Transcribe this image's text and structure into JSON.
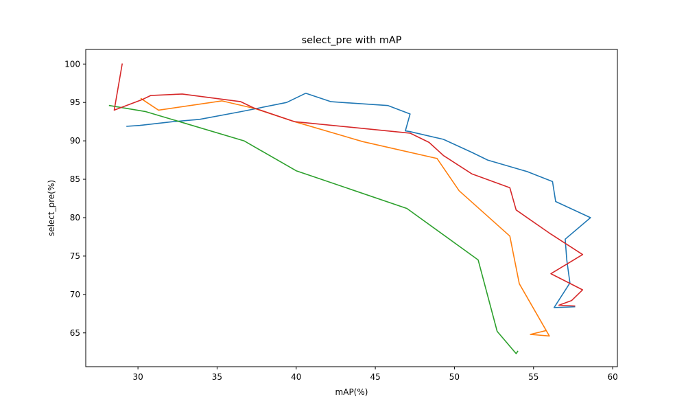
{
  "chart_data": {
    "type": "line",
    "title": "select_pre with mAP",
    "xlabel": "mAP(%)",
    "ylabel": "select_pre(%)",
    "xlim": [
      26.7,
      60.3
    ],
    "ylim": [
      60.6,
      101.9
    ],
    "xticks": [
      30,
      35,
      40,
      45,
      50,
      55,
      60
    ],
    "yticks": [
      65,
      70,
      75,
      80,
      85,
      90,
      95,
      100
    ],
    "grid": false,
    "series": [
      {
        "color": "#1f77b4",
        "points": [
          [
            29.3,
            91.9
          ],
          [
            30.1,
            92.0
          ],
          [
            32.2,
            92.5
          ],
          [
            33.9,
            92.8
          ],
          [
            36.5,
            93.8
          ],
          [
            39.4,
            95.0
          ],
          [
            40.6,
            96.2
          ],
          [
            42.2,
            95.1
          ],
          [
            45.8,
            94.6
          ],
          [
            47.2,
            93.5
          ],
          [
            46.9,
            91.3
          ],
          [
            47.2,
            91.2
          ],
          [
            49.3,
            90.2
          ],
          [
            51.1,
            88.5
          ],
          [
            52.1,
            87.5
          ],
          [
            54.6,
            86.0
          ],
          [
            56.2,
            84.7
          ],
          [
            56.4,
            82.1
          ],
          [
            58.6,
            80.0
          ],
          [
            57.0,
            77.2
          ],
          [
            57.1,
            74.5
          ],
          [
            57.3,
            71.5
          ],
          [
            56.3,
            68.3
          ],
          [
            57.6,
            68.4
          ]
        ]
      },
      {
        "color": "#ff7f0e",
        "points": [
          [
            30.2,
            95.5
          ],
          [
            31.3,
            94.0
          ],
          [
            35.3,
            95.2
          ],
          [
            37.4,
            94.2
          ],
          [
            39.9,
            92.5
          ],
          [
            44.2,
            89.9
          ],
          [
            48.9,
            87.7
          ],
          [
            50.3,
            83.5
          ],
          [
            53.5,
            77.6
          ],
          [
            54.1,
            71.4
          ],
          [
            56.0,
            64.6
          ],
          [
            54.8,
            64.8
          ],
          [
            55.8,
            65.3
          ]
        ]
      },
      {
        "color": "#2ca02c",
        "points": [
          [
            28.2,
            94.6
          ],
          [
            30.5,
            93.8
          ],
          [
            36.7,
            90.0
          ],
          [
            40.0,
            86.1
          ],
          [
            47.0,
            81.2
          ],
          [
            51.5,
            74.5
          ],
          [
            52.7,
            65.2
          ],
          [
            53.9,
            62.3
          ],
          [
            54.0,
            62.6
          ]
        ]
      },
      {
        "color": "#d62728",
        "points": [
          [
            29.0,
            100.0
          ],
          [
            28.5,
            94.0
          ],
          [
            30.3,
            95.4
          ],
          [
            30.8,
            95.9
          ],
          [
            32.8,
            96.1
          ],
          [
            36.5,
            95.1
          ],
          [
            37.3,
            94.3
          ],
          [
            39.9,
            92.5
          ],
          [
            47.2,
            91.0
          ],
          [
            48.4,
            89.8
          ],
          [
            49.3,
            88.1
          ],
          [
            51.1,
            85.7
          ],
          [
            53.5,
            83.9
          ],
          [
            53.9,
            81.0
          ],
          [
            56.0,
            78.0
          ],
          [
            58.1,
            75.2
          ],
          [
            56.1,
            72.7
          ],
          [
            58.1,
            70.6
          ],
          [
            57.4,
            69.2
          ],
          [
            56.6,
            68.6
          ],
          [
            57.6,
            68.5
          ]
        ]
      }
    ]
  }
}
